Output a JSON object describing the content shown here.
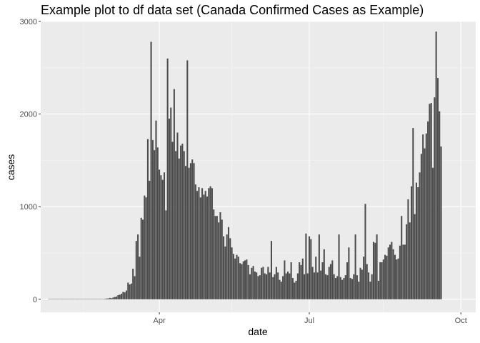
{
  "chart_data": {
    "type": "bar",
    "title": "Example plot to df data set (Canada Confirmed Cases as Example)",
    "xlabel": "date",
    "ylabel": "cases",
    "x_range": [
      "2020-01-20",
      "2020-10-10"
    ],
    "ylim": [
      -140,
      3000
    ],
    "y_ticks": [
      0,
      1000,
      2000,
      3000
    ],
    "y_tick_labels": [
      "0",
      "1000",
      "2000",
      "3000"
    ],
    "x_ticks": [
      "2020-04-01",
      "2020-07-01",
      "2020-10-01"
    ],
    "x_tick_labels": [
      "Apr",
      "Jul",
      "Oct"
    ],
    "x_minor_ticks": [
      "2020-02-15",
      "2020-05-15",
      "2020-08-15"
    ],
    "grid": true,
    "series": [
      {
        "name": "cases",
        "start_date": "2020-01-25",
        "color": "#4d4d4d",
        "values": [
          1,
          0,
          0,
          0,
          0,
          1,
          0,
          1,
          0,
          0,
          0,
          0,
          1,
          0,
          0,
          0,
          0,
          0,
          0,
          0,
          1,
          0,
          0,
          1,
          0,
          0,
          0,
          1,
          0,
          1,
          1,
          2,
          1,
          3,
          5,
          8,
          10,
          15,
          12,
          20,
          25,
          30,
          45,
          50,
          60,
          80,
          75,
          95,
          180,
          160,
          170,
          330,
          250,
          630,
          700,
          460,
          880,
          860,
          1120,
          1100,
          1730,
          1280,
          2780,
          1720,
          1610,
          1930,
          1640,
          1400,
          1340,
          1290,
          1370,
          960,
          2600,
          1950,
          2070,
          1700,
          2270,
          1600,
          1800,
          1520,
          1660,
          1680,
          1600,
          1440,
          2580,
          1420,
          1470,
          1510,
          1470,
          1240,
          1170,
          1210,
          1100,
          1200,
          1130,
          1170,
          1110,
          1200,
          1220,
          1200,
          970,
          900,
          900,
          830,
          940,
          860,
          680,
          570,
          700,
          780,
          660,
          560,
          490,
          440,
          480,
          460,
          390,
          380,
          410,
          420,
          430,
          370,
          270,
          340,
          360,
          300,
          290,
          250,
          260,
          340,
          350,
          280,
          270,
          350,
          290,
          630,
          240,
          270,
          350,
          290,
          210,
          190,
          250,
          420,
          280,
          300,
          280,
          400,
          230,
          180,
          200,
          280,
          400,
          370,
          440,
          270,
          710,
          280,
          680,
          650,
          350,
          290,
          460,
          290,
          700,
          310,
          400,
          540,
          270,
          260,
          350,
          380,
          420,
          270,
          230,
          250,
          700,
          240,
          210,
          230,
          260,
          400,
          560,
          230,
          220,
          270,
          700,
          260,
          190,
          340,
          320,
          460,
          1030,
          380,
          290,
          190,
          270,
          620,
          610,
          700,
          200,
          400,
          400,
          430,
          480,
          470,
          560,
          590,
          620,
          540,
          480,
          430,
          440,
          580,
          900,
          590,
          590,
          810,
          1080,
          830,
          1220,
          1850,
          920,
          1260,
          1210,
          1370,
          1570,
          1780,
          1630,
          1790,
          1920,
          2110,
          2120,
          1420,
          2180,
          2890,
          2390,
          2030,
          1650
        ]
      }
    ]
  }
}
